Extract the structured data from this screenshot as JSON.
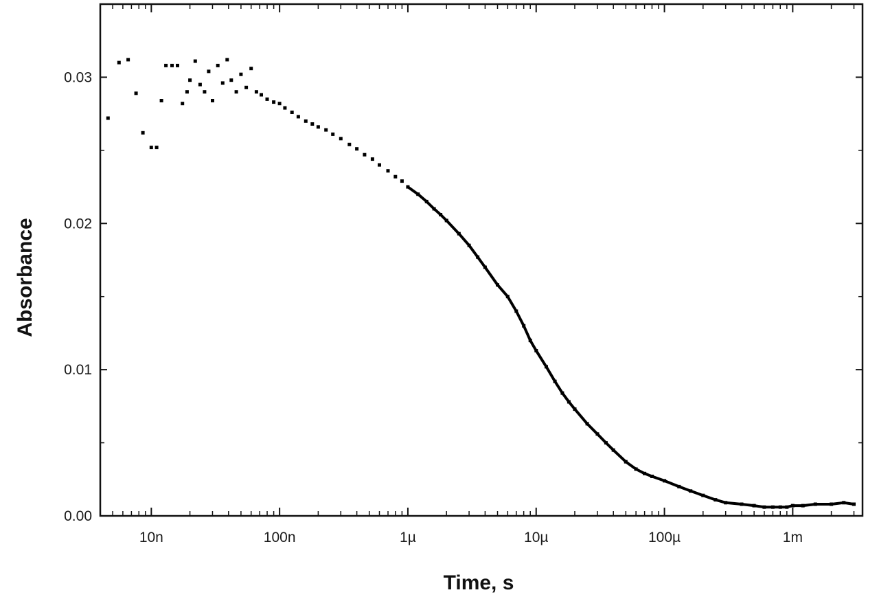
{
  "chart_data": {
    "type": "scatter",
    "title": "",
    "xlabel": "Time, s",
    "ylabel": "Absorbance",
    "x_scale": "log",
    "xlim": [
      4e-09,
      0.0035
    ],
    "ylim": [
      0.0,
      0.035
    ],
    "grid": false,
    "legend": "none",
    "marker_color": "#000000",
    "x_ticks": [
      {
        "value": 1e-08,
        "label": "10n"
      },
      {
        "value": 1e-07,
        "label": "100n"
      },
      {
        "value": 1e-06,
        "label": "1µ"
      },
      {
        "value": 1e-05,
        "label": "10µ"
      },
      {
        "value": 0.0001,
        "label": "100µ"
      },
      {
        "value": 0.001,
        "label": "1m"
      }
    ],
    "y_ticks": [
      {
        "value": 0.0,
        "label": "0.00"
      },
      {
        "value": 0.01,
        "label": "0.01"
      },
      {
        "value": 0.02,
        "label": "0.02"
      },
      {
        "value": 0.03,
        "label": "0.03"
      }
    ],
    "series": [
      {
        "points": [
          [
            4.6e-09,
            0.0272
          ],
          [
            5.6e-09,
            0.031
          ],
          [
            6.6e-09,
            0.0312
          ],
          [
            7.6e-09,
            0.0289
          ],
          [
            8.6e-09,
            0.0262
          ],
          [
            1e-08,
            0.0252
          ],
          [
            1.1e-08,
            0.0252
          ],
          [
            1.2e-08,
            0.0284
          ],
          [
            1.3e-08,
            0.0308
          ],
          [
            1.45e-08,
            0.0308
          ],
          [
            1.6e-08,
            0.0308
          ],
          [
            1.75e-08,
            0.0282
          ],
          [
            1.9e-08,
            0.029
          ],
          [
            2e-08,
            0.0298
          ],
          [
            2.2e-08,
            0.0311
          ],
          [
            2.4e-08,
            0.0295
          ],
          [
            2.6e-08,
            0.029
          ],
          [
            2.8e-08,
            0.0304
          ],
          [
            3e-08,
            0.0284
          ],
          [
            3.3e-08,
            0.0308
          ],
          [
            3.6e-08,
            0.0296
          ],
          [
            3.9e-08,
            0.0312
          ],
          [
            4.2e-08,
            0.0298
          ],
          [
            4.6e-08,
            0.029
          ],
          [
            5e-08,
            0.0302
          ],
          [
            5.5e-08,
            0.0293
          ],
          [
            6e-08,
            0.0306
          ],
          [
            6.6e-08,
            0.029
          ],
          [
            7.2e-08,
            0.0288
          ],
          [
            8e-08,
            0.0285
          ],
          [
            9e-08,
            0.0283
          ],
          [
            1e-07,
            0.0282
          ],
          [
            1.1e-07,
            0.0279
          ],
          [
            1.25e-07,
            0.0276
          ],
          [
            1.4e-07,
            0.0273
          ],
          [
            1.6e-07,
            0.027
          ],
          [
            1.8e-07,
            0.0268
          ],
          [
            2e-07,
            0.0266
          ],
          [
            2.3e-07,
            0.0264
          ],
          [
            2.6e-07,
            0.0261
          ],
          [
            3e-07,
            0.0258
          ],
          [
            3.5e-07,
            0.0254
          ],
          [
            4e-07,
            0.0251
          ],
          [
            4.6e-07,
            0.0247
          ],
          [
            5.3e-07,
            0.0244
          ],
          [
            6e-07,
            0.024
          ],
          [
            7e-07,
            0.0236
          ],
          [
            8e-07,
            0.0232
          ],
          [
            9e-07,
            0.0229
          ],
          [
            1e-06,
            0.0225
          ],
          [
            1.2e-06,
            0.022
          ],
          [
            1.4e-06,
            0.0215
          ],
          [
            1.6e-06,
            0.021
          ],
          [
            1.8e-06,
            0.0206
          ],
          [
            2e-06,
            0.0202
          ],
          [
            2.5e-06,
            0.0193
          ],
          [
            3e-06,
            0.0185
          ],
          [
            3.5e-06,
            0.0177
          ],
          [
            4e-06,
            0.017
          ],
          [
            5e-06,
            0.0158
          ],
          [
            6e-06,
            0.015
          ],
          [
            7e-06,
            0.014
          ],
          [
            8e-06,
            0.013
          ],
          [
            9e-06,
            0.012
          ],
          [
            1e-05,
            0.0113
          ],
          [
            1.2e-05,
            0.0102
          ],
          [
            1.4e-05,
            0.0092
          ],
          [
            1.6e-05,
            0.0084
          ],
          [
            1.8e-05,
            0.0078
          ],
          [
            2e-05,
            0.0073
          ],
          [
            2.5e-05,
            0.0063
          ],
          [
            3e-05,
            0.0056
          ],
          [
            3.5e-05,
            0.005
          ],
          [
            4e-05,
            0.0045
          ],
          [
            5e-05,
            0.0037
          ],
          [
            6e-05,
            0.0032
          ],
          [
            7e-05,
            0.0029
          ],
          [
            8e-05,
            0.0027
          ],
          [
            0.0001,
            0.0024
          ],
          [
            0.00013,
            0.002
          ],
          [
            0.00016,
            0.0017
          ],
          [
            0.0002,
            0.0014
          ],
          [
            0.00025,
            0.0011
          ],
          [
            0.0003,
            0.0009
          ],
          [
            0.0004,
            0.0008
          ],
          [
            0.0005,
            0.0007
          ],
          [
            0.0006,
            0.0006
          ],
          [
            0.0007,
            0.0006
          ],
          [
            0.0008,
            0.0006
          ],
          [
            0.0009,
            0.0006
          ],
          [
            0.001,
            0.0007
          ],
          [
            0.0012,
            0.0007
          ],
          [
            0.0015,
            0.0008
          ],
          [
            0.002,
            0.0008
          ],
          [
            0.0025,
            0.0009
          ],
          [
            0.003,
            0.0008
          ]
        ]
      }
    ]
  }
}
